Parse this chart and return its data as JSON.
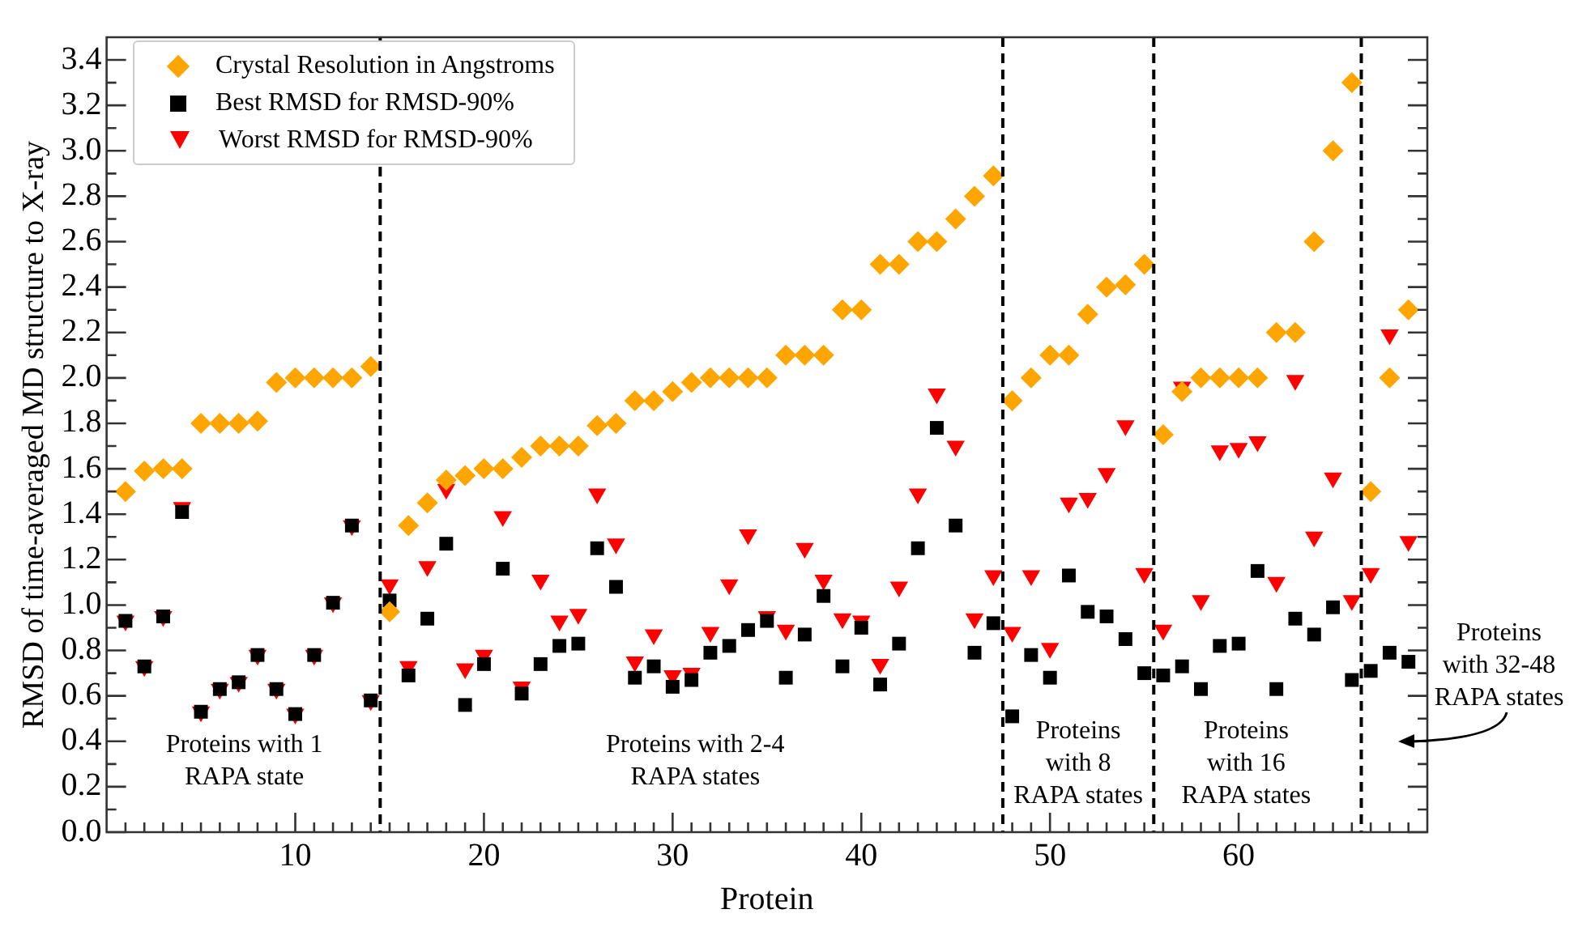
{
  "chart_data": {
    "type": "scatter",
    "xlabel": "Protein",
    "ylabel": "RMSD of time-averaged MD structure to X-ray",
    "x": [
      1,
      2,
      3,
      4,
      5,
      6,
      7,
      8,
      9,
      10,
      11,
      12,
      13,
      14,
      15,
      16,
      17,
      18,
      19,
      20,
      21,
      22,
      23,
      24,
      25,
      26,
      27,
      28,
      29,
      30,
      31,
      32,
      33,
      34,
      35,
      36,
      37,
      38,
      39,
      40,
      41,
      42,
      43,
      44,
      45,
      46,
      47,
      48,
      49,
      50,
      51,
      52,
      53,
      54,
      55,
      56,
      57,
      58,
      59,
      60,
      61,
      62,
      63,
      64,
      65,
      66,
      67,
      68,
      69
    ],
    "series": [
      {
        "name": "Crystal Resolution in Angstroms",
        "color": "#ffa500",
        "marker": "diamond",
        "values": [
          1.5,
          1.59,
          1.6,
          1.6,
          1.8,
          1.8,
          1.8,
          1.81,
          1.98,
          2.0,
          2.0,
          2.0,
          2.0,
          2.05,
          0.97,
          1.35,
          1.45,
          1.55,
          1.57,
          1.6,
          1.6,
          1.65,
          1.7,
          1.7,
          1.7,
          1.79,
          1.8,
          1.9,
          1.9,
          1.94,
          1.98,
          2.0,
          2.0,
          2.0,
          2.0,
          2.1,
          2.1,
          2.1,
          2.3,
          2.3,
          2.5,
          2.5,
          2.6,
          2.6,
          2.7,
          2.8,
          2.89,
          1.9,
          2.0,
          2.1,
          2.1,
          2.28,
          2.4,
          2.41,
          2.5,
          1.75,
          1.94,
          2.0,
          2.0,
          2.0,
          2.0,
          2.2,
          2.2,
          2.6,
          3.0,
          3.3,
          1.5,
          2.0,
          2.3
        ]
      },
      {
        "name": "Best RMSD for RMSD-90%",
        "color": "#000000",
        "marker": "square",
        "values": [
          0.93,
          0.73,
          0.95,
          1.41,
          0.53,
          0.63,
          0.66,
          0.78,
          0.63,
          0.52,
          0.78,
          1.01,
          1.35,
          0.58,
          1.02,
          0.69,
          0.94,
          1.27,
          0.56,
          0.74,
          1.16,
          0.61,
          0.74,
          0.82,
          0.83,
          1.25,
          1.08,
          0.68,
          0.73,
          0.64,
          0.67,
          0.79,
          0.82,
          0.89,
          0.93,
          0.68,
          0.87,
          1.04,
          0.73,
          0.9,
          0.65,
          0.83,
          1.25,
          1.78,
          1.35,
          0.79,
          0.92,
          0.51,
          0.78,
          0.68,
          1.13,
          0.97,
          0.95,
          0.85,
          0.7,
          0.69,
          0.73,
          0.63,
          0.82,
          0.83,
          1.15,
          0.63,
          0.94,
          0.87,
          0.99,
          0.67,
          0.71,
          0.79,
          0.75
        ]
      },
      {
        "name": "Worst RMSD for RMSD-90%",
        "color": "#ff0000",
        "marker": "triangle",
        "values": [
          0.93,
          0.73,
          0.95,
          1.43,
          0.53,
          0.63,
          0.66,
          0.78,
          0.63,
          0.52,
          0.78,
          1.01,
          1.35,
          0.58,
          1.09,
          0.73,
          1.17,
          1.51,
          0.72,
          0.78,
          1.39,
          0.64,
          1.11,
          0.93,
          0.96,
          1.49,
          1.27,
          0.75,
          0.87,
          0.69,
          0.7,
          0.88,
          1.09,
          1.31,
          0.95,
          0.89,
          1.25,
          1.11,
          0.94,
          0.93,
          0.74,
          1.08,
          1.49,
          1.93,
          1.7,
          0.94,
          1.13,
          0.88,
          1.13,
          0.81,
          1.45,
          1.47,
          1.58,
          1.79,
          1.14,
          0.89,
          1.96,
          1.02,
          1.68,
          1.69,
          1.72,
          1.1,
          1.99,
          1.3,
          1.56,
          1.02,
          1.14,
          2.19,
          1.28
        ]
      }
    ],
    "xlim": [
      0,
      70
    ],
    "xticks": [
      {
        "value": 1,
        "label": null
      },
      {
        "value": 2,
        "label": null
      },
      {
        "value": 3,
        "label": null
      },
      {
        "value": 4,
        "label": null
      },
      {
        "value": 5,
        "label": null
      },
      {
        "value": 6,
        "label": null
      },
      {
        "value": 7,
        "label": null
      },
      {
        "value": 8,
        "label": null
      },
      {
        "value": 9,
        "label": null
      },
      10,
      {
        "value": 11,
        "label": null
      },
      {
        "value": 12,
        "label": null
      },
      {
        "value": 13,
        "label": null
      },
      {
        "value": 14,
        "label": null
      },
      {
        "value": 15,
        "label": null
      },
      {
        "value": 16,
        "label": null
      },
      {
        "value": 17,
        "label": null
      },
      {
        "value": 18,
        "label": null
      },
      {
        "value": 19,
        "label": null
      },
      20,
      {
        "value": 21,
        "label": null
      },
      {
        "value": 22,
        "label": null
      },
      {
        "value": 23,
        "label": null
      },
      {
        "value": 24,
        "label": null
      },
      {
        "value": 25,
        "label": null
      },
      {
        "value": 26,
        "label": null
      },
      {
        "value": 27,
        "label": null
      },
      {
        "value": 28,
        "label": null
      },
      {
        "value": 29,
        "label": null
      },
      30,
      {
        "value": 31,
        "label": null
      },
      {
        "value": 32,
        "label": null
      },
      {
        "value": 33,
        "label": null
      },
      {
        "value": 34,
        "label": null
      },
      {
        "value": 35,
        "label": null
      },
      {
        "value": 36,
        "label": null
      },
      {
        "value": 37,
        "label": null
      },
      {
        "value": 38,
        "label": null
      },
      {
        "value": 39,
        "label": null
      },
      40,
      {
        "value": 41,
        "label": null
      },
      {
        "value": 42,
        "label": null
      },
      {
        "value": 43,
        "label": null
      },
      {
        "value": 44,
        "label": null
      },
      {
        "value": 45,
        "label": null
      },
      {
        "value": 46,
        "label": null
      },
      {
        "value": 47,
        "label": null
      },
      {
        "value": 48,
        "label": null
      },
      {
        "value": 49,
        "label": null
      },
      50,
      {
        "value": 51,
        "label": null
      },
      {
        "value": 52,
        "label": null
      },
      {
        "value": 53,
        "label": null
      },
      {
        "value": 54,
        "label": null
      },
      {
        "value": 55,
        "label": null
      },
      {
        "value": 56,
        "label": null
      },
      {
        "value": 57,
        "label": null
      },
      {
        "value": 58,
        "label": null
      },
      {
        "value": 59,
        "label": null
      },
      60,
      {
        "value": 61,
        "label": null
      },
      {
        "value": 62,
        "label": null
      },
      {
        "value": 63,
        "label": null
      },
      {
        "value": 64,
        "label": null
      },
      {
        "value": 65,
        "label": null
      },
      {
        "value": 66,
        "label": null
      },
      {
        "value": 67,
        "label": null
      },
      {
        "value": 68,
        "label": null
      },
      {
        "value": 69,
        "label": null
      }
    ],
    "ylim": [
      0,
      3.5
    ],
    "yticks": [
      {
        "value": 0,
        "label": "0.0"
      },
      {
        "value": 0.1,
        "label": null
      },
      {
        "value": 0.2,
        "label": "0.2"
      },
      {
        "value": 0.3,
        "label": null
      },
      {
        "value": 0.4,
        "label": "0.4"
      },
      {
        "value": 0.5,
        "label": null
      },
      {
        "value": 0.6,
        "label": "0.6"
      },
      {
        "value": 0.7,
        "label": null
      },
      {
        "value": 0.8,
        "label": "0.8"
      },
      {
        "value": 0.9,
        "label": null
      },
      {
        "value": 1,
        "label": "1.0"
      },
      {
        "value": 1.1,
        "label": null
      },
      {
        "value": 1.2,
        "label": "1.2"
      },
      {
        "value": 1.3,
        "label": null
      },
      {
        "value": 1.4,
        "label": "1.4"
      },
      {
        "value": 1.5,
        "label": null
      },
      {
        "value": 1.6,
        "label": "1.6"
      },
      {
        "value": 1.7,
        "label": null
      },
      {
        "value": 1.8,
        "label": "1.8"
      },
      {
        "value": 1.9,
        "label": null
      },
      {
        "value": 2,
        "label": "2.0"
      },
      {
        "value": 2.1,
        "label": null
      },
      {
        "value": 2.2,
        "label": "2.2"
      },
      {
        "value": 2.3,
        "label": null
      },
      {
        "value": 2.4,
        "label": "2.4"
      },
      {
        "value": 2.5,
        "label": null
      },
      {
        "value": 2.6,
        "label": "2.6"
      },
      {
        "value": 2.7,
        "label": null
      },
      {
        "value": 2.8,
        "label": "2.8"
      },
      {
        "value": 2.9,
        "label": null
      },
      {
        "value": 3,
        "label": "3.0"
      },
      {
        "value": 3.1,
        "label": null
      },
      {
        "value": 3.2,
        "label": "3.2"
      },
      {
        "value": 3.3,
        "label": null
      },
      {
        "value": 3.4,
        "label": "3.4"
      }
    ],
    "ref_lines": [
      {
        "axis": "x",
        "value": 14.5,
        "color": "#000000",
        "line_style": "dashed"
      },
      {
        "axis": "x",
        "value": 47.5,
        "color": "#000000",
        "line_style": "dashed"
      },
      {
        "axis": "x",
        "value": 55.5,
        "color": "#000000",
        "line_style": "dashed"
      },
      {
        "axis": "x",
        "value": 66.5,
        "color": "#000000",
        "line_style": "dashed"
      }
    ],
    "annotations": [
      "Proteins with 1 RAPA state",
      "Proteins with 2-4 RAPA states",
      "Proteins with 8 RAPA states",
      "Proteins with 16 RAPA states",
      "Proteins with 32-48 RAPA states"
    ],
    "grid": false,
    "legend": "top left"
  }
}
